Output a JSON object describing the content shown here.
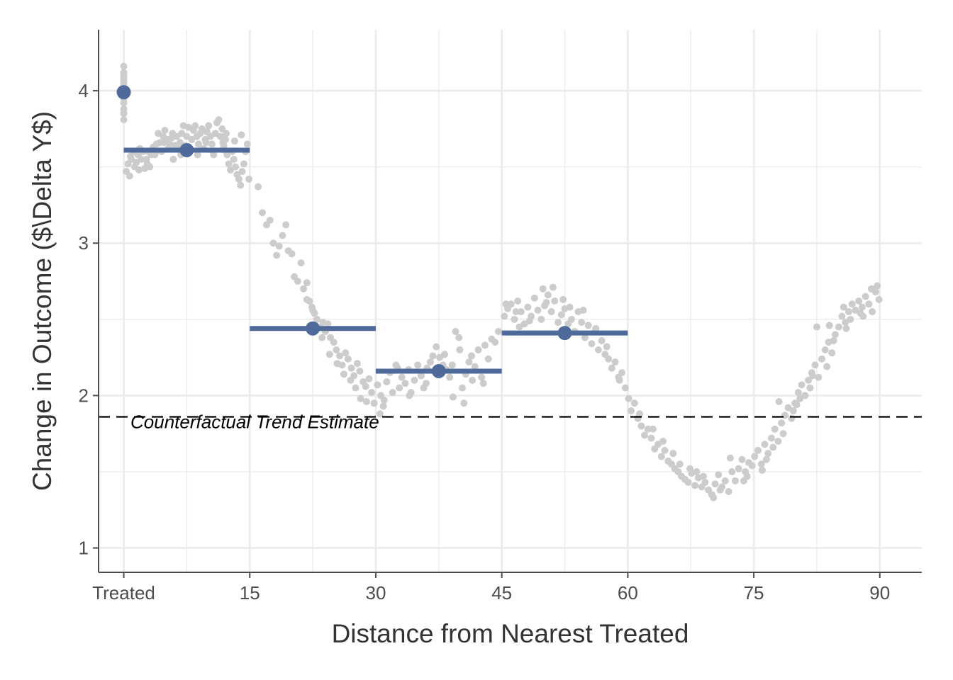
{
  "chart_data": {
    "type": "scatter",
    "xlabel": "Distance from Nearest Treated",
    "ylabel": "Change in Outcome ($\\Delta Y$)",
    "xlim": [
      -3,
      95
    ],
    "ylim": [
      0.84,
      4.4
    ],
    "x_ticks": [
      {
        "value": 0,
        "label": "Treated"
      },
      {
        "value": 15,
        "label": "15"
      },
      {
        "value": 30,
        "label": "30"
      },
      {
        "value": 45,
        "label": "45"
      },
      {
        "value": 60,
        "label": "60"
      },
      {
        "value": 75,
        "label": "75"
      },
      {
        "value": 90,
        "label": "90"
      }
    ],
    "x_minor_ticks": [
      7.5,
      22.5,
      37.5,
      52.5,
      67.5,
      82.5
    ],
    "y_ticks": [
      {
        "value": 1,
        "label": "1"
      },
      {
        "value": 2,
        "label": "2"
      },
      {
        "value": 3,
        "label": "3"
      },
      {
        "value": 4,
        "label": "4"
      }
    ],
    "y_minor_ticks": [
      1.5,
      2.5,
      3.5
    ],
    "grid": true,
    "reference_line": {
      "y": 1.86,
      "label": "Counterfactual Trend Estimate",
      "style": "dashed"
    },
    "treated_points": [
      4.16,
      4.12,
      4.08,
      4.04,
      4.01,
      3.98,
      3.95,
      3.92,
      3.88,
      3.85,
      3.81,
      4.1,
      4.06
    ],
    "raw_points": [
      [
        0.3,
        3.47
      ],
      [
        0.5,
        3.52
      ],
      [
        0.7,
        3.44
      ],
      [
        0.9,
        3.55
      ],
      [
        1.1,
        3.6
      ],
      [
        1.3,
        3.5
      ],
      [
        1.5,
        3.53
      ],
      [
        1.7,
        3.58
      ],
      [
        1.9,
        3.62
      ],
      [
        2.1,
        3.55
      ],
      [
        2.3,
        3.6
      ],
      [
        2.5,
        3.49
      ],
      [
        2.7,
        3.55
      ],
      [
        2.9,
        3.6
      ],
      [
        3.1,
        3.5
      ],
      [
        3.3,
        3.58
      ],
      [
        3.5,
        3.63
      ],
      [
        3.7,
        3.58
      ],
      [
        3.9,
        3.65
      ],
      [
        4.1,
        3.72
      ],
      [
        4.3,
        3.66
      ],
      [
        4.5,
        3.6
      ],
      [
        4.7,
        3.7
      ],
      [
        4.9,
        3.74
      ],
      [
        5.1,
        3.68
      ],
      [
        5.3,
        3.62
      ],
      [
        5.5,
        3.65
      ],
      [
        5.7,
        3.69
      ],
      [
        5.9,
        3.55
      ],
      [
        6.1,
        3.64
      ],
      [
        6.3,
        3.7
      ],
      [
        6.5,
        3.62
      ],
      [
        6.7,
        3.66
      ],
      [
        6.9,
        3.72
      ],
      [
        7.1,
        3.77
      ],
      [
        7.3,
        3.64
      ],
      [
        7.5,
        3.7
      ],
      [
        7.7,
        3.76
      ],
      [
        7.9,
        3.62
      ],
      [
        8.1,
        3.68
      ],
      [
        8.3,
        3.74
      ],
      [
        8.5,
        3.77
      ],
      [
        8.7,
        3.7
      ],
      [
        8.9,
        3.65
      ],
      [
        9.1,
        3.72
      ],
      [
        9.3,
        3.75
      ],
      [
        9.5,
        3.62
      ],
      [
        9.7,
        3.68
      ],
      [
        9.9,
        3.73
      ],
      [
        10.1,
        3.77
      ],
      [
        10.3,
        3.7
      ],
      [
        10.5,
        3.65
      ],
      [
        10.7,
        3.58
      ],
      [
        10.9,
        3.72
      ],
      [
        11.1,
        3.79
      ],
      [
        11.3,
        3.81
      ],
      [
        11.5,
        3.7
      ],
      [
        11.7,
        3.75
      ],
      [
        11.9,
        3.64
      ],
      [
        12.1,
        3.68
      ],
      [
        12.3,
        3.58
      ],
      [
        12.5,
        3.52
      ],
      [
        12.7,
        3.48
      ],
      [
        12.9,
        3.6
      ],
      [
        13.1,
        3.55
      ],
      [
        13.3,
        3.5
      ],
      [
        13.5,
        3.45
      ],
      [
        13.7,
        3.42
      ],
      [
        13.9,
        3.38
      ],
      [
        14.1,
        3.47
      ],
      [
        14.3,
        3.52
      ],
      [
        14.5,
        3.6
      ],
      [
        14.7,
        3.65
      ],
      [
        14.9,
        3.42
      ],
      [
        13.2,
        3.67
      ],
      [
        12.2,
        3.72
      ],
      [
        11.8,
        3.66
      ],
      [
        10.6,
        3.6
      ],
      [
        9.8,
        3.66
      ],
      [
        8.8,
        3.58
      ],
      [
        7.8,
        3.61
      ],
      [
        6.8,
        3.58
      ],
      [
        5.8,
        3.72
      ],
      [
        4.8,
        3.66
      ],
      [
        3.8,
        3.6
      ],
      [
        2.8,
        3.52
      ],
      [
        1.8,
        3.48
      ],
      [
        0.8,
        3.57
      ],
      [
        14.0,
        3.71
      ],
      [
        12.0,
        3.61
      ],
      [
        16.0,
        3.37
      ],
      [
        16.5,
        3.2
      ],
      [
        17.0,
        3.12
      ],
      [
        17.4,
        3.15
      ],
      [
        17.8,
        3.0
      ],
      [
        18.2,
        2.92
      ],
      [
        18.5,
        2.98
      ],
      [
        18.9,
        3.05
      ],
      [
        19.3,
        3.12
      ],
      [
        19.6,
        2.95
      ],
      [
        20.0,
        2.93
      ],
      [
        20.3,
        2.78
      ],
      [
        20.7,
        2.75
      ],
      [
        21.1,
        2.87
      ],
      [
        21.4,
        2.7
      ],
      [
        21.8,
        2.74
      ],
      [
        22.1,
        2.62
      ],
      [
        22.4,
        2.58
      ],
      [
        22.7,
        2.54
      ],
      [
        23.0,
        2.5
      ],
      [
        23.4,
        2.45
      ],
      [
        23.7,
        2.48
      ],
      [
        24.0,
        2.42
      ],
      [
        24.3,
        2.47
      ],
      [
        24.6,
        2.38
      ],
      [
        25.0,
        2.35
      ],
      [
        25.3,
        2.3
      ],
      [
        25.7,
        2.26
      ],
      [
        26.0,
        2.2
      ],
      [
        26.4,
        2.28
      ],
      [
        26.7,
        2.24
      ],
      [
        27.1,
        2.18
      ],
      [
        27.4,
        2.13
      ],
      [
        27.8,
        2.21
      ],
      [
        28.1,
        2.16
      ],
      [
        28.5,
        2.09
      ],
      [
        28.8,
        2.06
      ],
      [
        29.2,
        2.11
      ],
      [
        29.5,
        2.02
      ],
      [
        29.8,
        1.95
      ],
      [
        23.6,
        2.38
      ],
      [
        24.5,
        2.27
      ],
      [
        25.4,
        2.21
      ],
      [
        26.2,
        2.14
      ],
      [
        27.0,
        2.1
      ],
      [
        27.6,
        2.05
      ],
      [
        28.2,
        1.98
      ],
      [
        28.9,
        1.96
      ],
      [
        22.5,
        2.56
      ],
      [
        21.8,
        2.63
      ],
      [
        30.2,
        2.07
      ],
      [
        30.6,
        2.0
      ],
      [
        30.9,
        1.93
      ],
      [
        31.3,
        2.09
      ],
      [
        31.7,
        2.15
      ],
      [
        32.0,
        2.02
      ],
      [
        32.4,
        2.2
      ],
      [
        32.8,
        2.05
      ],
      [
        33.1,
        2.12
      ],
      [
        33.5,
        2.08
      ],
      [
        33.9,
        2.17
      ],
      [
        34.2,
        2.02
      ],
      [
        34.6,
        2.1
      ],
      [
        35.0,
        2.2
      ],
      [
        35.4,
        2.13
      ],
      [
        35.7,
        2.05
      ],
      [
        36.1,
        2.18
      ],
      [
        36.5,
        2.22
      ],
      [
        36.8,
        2.26
      ],
      [
        37.2,
        2.32
      ],
      [
        37.6,
        2.25
      ],
      [
        38.0,
        2.2
      ],
      [
        38.4,
        2.17
      ],
      [
        38.8,
        2.12
      ],
      [
        39.1,
        2.2
      ],
      [
        39.5,
        2.42
      ],
      [
        39.9,
        2.38
      ],
      [
        40.3,
        2.05
      ],
      [
        40.7,
        2.14
      ],
      [
        41.1,
        2.22
      ],
      [
        41.4,
        2.26
      ],
      [
        41.8,
        2.19
      ],
      [
        42.2,
        2.3
      ],
      [
        42.6,
        2.12
      ],
      [
        43.0,
        2.33
      ],
      [
        43.4,
        2.24
      ],
      [
        43.8,
        2.37
      ],
      [
        44.2,
        2.35
      ],
      [
        44.6,
        2.42
      ],
      [
        30.5,
        1.88
      ],
      [
        31.0,
        1.97
      ],
      [
        32.6,
        2.18
      ],
      [
        34.0,
        2.0
      ],
      [
        36.0,
        2.08
      ],
      [
        38.2,
        2.27
      ],
      [
        39.2,
        1.99
      ],
      [
        40.0,
        2.3
      ],
      [
        40.5,
        1.95
      ],
      [
        41.5,
        2.1
      ],
      [
        42.8,
        2.08
      ],
      [
        45.3,
        2.52
      ],
      [
        45.7,
        2.57
      ],
      [
        46.1,
        2.6
      ],
      [
        46.5,
        2.5
      ],
      [
        46.9,
        2.62
      ],
      [
        47.3,
        2.55
      ],
      [
        47.7,
        2.47
      ],
      [
        48.1,
        2.58
      ],
      [
        48.5,
        2.52
      ],
      [
        48.9,
        2.64
      ],
      [
        49.3,
        2.56
      ],
      [
        49.7,
        2.5
      ],
      [
        50.1,
        2.59
      ],
      [
        50.5,
        2.66
      ],
      [
        50.9,
        2.55
      ],
      [
        51.3,
        2.62
      ],
      [
        51.7,
        2.48
      ],
      [
        52.1,
        2.53
      ],
      [
        52.5,
        2.57
      ],
      [
        52.9,
        2.47
      ],
      [
        53.3,
        2.5
      ],
      [
        53.7,
        2.42
      ],
      [
        54.1,
        2.55
      ],
      [
        54.5,
        2.48
      ],
      [
        54.9,
        2.38
      ],
      [
        55.3,
        2.46
      ],
      [
        55.7,
        2.34
      ],
      [
        56.1,
        2.42
      ],
      [
        56.5,
        2.3
      ],
      [
        56.9,
        2.36
      ],
      [
        57.3,
        2.27
      ],
      [
        57.7,
        2.24
      ],
      [
        58.1,
        2.18
      ],
      [
        58.5,
        2.22
      ],
      [
        58.9,
        2.12
      ],
      [
        59.3,
        2.15
      ],
      [
        59.7,
        2.05
      ],
      [
        45.5,
        2.6
      ],
      [
        47.1,
        2.45
      ],
      [
        49.9,
        2.7
      ],
      [
        51.1,
        2.71
      ],
      [
        53.1,
        2.58
      ],
      [
        54.7,
        2.56
      ],
      [
        56.2,
        2.44
      ],
      [
        57.5,
        2.32
      ],
      [
        59.0,
        2.1
      ],
      [
        46.7,
        2.55
      ],
      [
        48.3,
        2.49
      ],
      [
        50.3,
        2.61
      ],
      [
        52.3,
        2.63
      ],
      [
        60.1,
        1.98
      ],
      [
        60.4,
        1.9
      ],
      [
        60.8,
        1.95
      ],
      [
        61.2,
        1.85
      ],
      [
        61.6,
        1.8
      ],
      [
        62.0,
        1.74
      ],
      [
        62.4,
        1.78
      ],
      [
        62.8,
        1.72
      ],
      [
        63.2,
        1.65
      ],
      [
        63.6,
        1.68
      ],
      [
        64.0,
        1.6
      ],
      [
        64.4,
        1.64
      ],
      [
        64.8,
        1.57
      ],
      [
        65.2,
        1.55
      ],
      [
        65.6,
        1.52
      ],
      [
        66.0,
        1.5
      ],
      [
        66.4,
        1.47
      ],
      [
        66.8,
        1.45
      ],
      [
        67.2,
        1.43
      ],
      [
        67.6,
        1.49
      ],
      [
        68.0,
        1.41
      ],
      [
        68.4,
        1.46
      ],
      [
        68.8,
        1.4
      ],
      [
        69.2,
        1.43
      ],
      [
        69.6,
        1.38
      ],
      [
        70.0,
        1.35
      ],
      [
        70.4,
        1.42
      ],
      [
        70.8,
        1.48
      ],
      [
        71.2,
        1.4
      ],
      [
        71.6,
        1.44
      ],
      [
        72.0,
        1.37
      ],
      [
        72.4,
        1.5
      ],
      [
        72.8,
        1.44
      ],
      [
        73.2,
        1.52
      ],
      [
        73.6,
        1.58
      ],
      [
        74.0,
        1.5
      ],
      [
        74.4,
        1.56
      ],
      [
        74.8,
        1.54
      ],
      [
        61.4,
        1.88
      ],
      [
        63.0,
        1.78
      ],
      [
        64.2,
        1.7
      ],
      [
        65.4,
        1.62
      ],
      [
        66.2,
        1.55
      ],
      [
        67.4,
        1.52
      ],
      [
        68.2,
        1.5
      ],
      [
        69.0,
        1.47
      ],
      [
        70.2,
        1.33
      ],
      [
        71.0,
        1.38
      ],
      [
        72.2,
        1.59
      ],
      [
        73.8,
        1.44
      ],
      [
        75.1,
        1.6
      ],
      [
        75.5,
        1.64
      ],
      [
        75.9,
        1.55
      ],
      [
        76.3,
        1.68
      ],
      [
        76.7,
        1.62
      ],
      [
        77.1,
        1.72
      ],
      [
        77.5,
        1.78
      ],
      [
        77.9,
        1.7
      ],
      [
        78.3,
        1.82
      ],
      [
        78.7,
        1.87
      ],
      [
        79.1,
        1.92
      ],
      [
        79.5,
        1.85
      ],
      [
        79.9,
        1.95
      ],
      [
        80.3,
        2.02
      ],
      [
        80.7,
        2.07
      ],
      [
        81.1,
        2.0
      ],
      [
        81.5,
        2.1
      ],
      [
        81.9,
        2.15
      ],
      [
        82.3,
        2.2
      ],
      [
        82.7,
        2.12
      ],
      [
        83.1,
        2.24
      ],
      [
        83.5,
        2.3
      ],
      [
        83.9,
        2.35
      ],
      [
        84.3,
        2.28
      ],
      [
        84.7,
        2.4
      ],
      [
        85.1,
        2.45
      ],
      [
        85.5,
        2.52
      ],
      [
        85.9,
        2.48
      ],
      [
        86.3,
        2.55
      ],
      [
        86.7,
        2.6
      ],
      [
        87.1,
        2.56
      ],
      [
        87.5,
        2.62
      ],
      [
        87.9,
        2.58
      ],
      [
        88.3,
        2.65
      ],
      [
        88.7,
        2.6
      ],
      [
        89.1,
        2.55
      ],
      [
        89.5,
        2.68
      ],
      [
        89.9,
        2.63
      ],
      [
        76.0,
        1.51
      ],
      [
        78.0,
        1.96
      ],
      [
        80.5,
        1.98
      ],
      [
        82.5,
        2.45
      ],
      [
        84.0,
        2.46
      ],
      [
        86.0,
        2.44
      ],
      [
        88.0,
        2.52
      ],
      [
        89.0,
        2.7
      ],
      [
        77.3,
        1.66
      ],
      [
        79.7,
        1.9
      ],
      [
        81.7,
        2.05
      ],
      [
        83.7,
        2.19
      ],
      [
        85.7,
        2.58
      ],
      [
        87.7,
        2.54
      ],
      [
        89.7,
        2.72
      ],
      [
        74.2,
        1.47
      ],
      [
        76.5,
        1.58
      ],
      [
        78.5,
        1.75
      ],
      [
        80.1,
        1.94
      ],
      [
        82.0,
        2.13
      ],
      [
        84.5,
        2.36
      ],
      [
        86.5,
        2.5
      ]
    ],
    "binned_estimates": [
      {
        "x_start": 0,
        "x_end": 15,
        "x_mid": 7.5,
        "y": 3.61
      },
      {
        "x_start": 15,
        "x_end": 30,
        "x_mid": 22.5,
        "y": 2.44
      },
      {
        "x_start": 30,
        "x_end": 45,
        "x_mid": 37.5,
        "y": 2.16
      },
      {
        "x_start": 45,
        "x_end": 60,
        "x_mid": 52.5,
        "y": 2.41
      }
    ],
    "treated_estimate": {
      "x": 0,
      "y": 3.99
    },
    "colors": {
      "raw": "#cccccc",
      "estimate": "#4e6a9a",
      "grid": "#ebebeb",
      "axis": "#4d4d4d",
      "reference": "#000000"
    }
  }
}
